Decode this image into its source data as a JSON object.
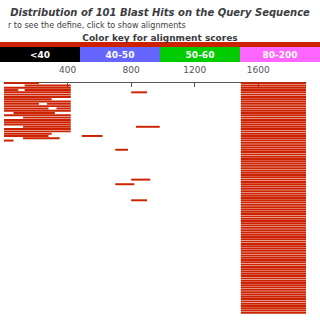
{
  "chart_data": {
    "type": "range_bar",
    "orientation": "horizontal",
    "title": "Distribution of 101 Blast Hits on the Query Sequence",
    "subtitle": "r to see the define, click to show alignments",
    "colorkey": {
      "title": "Color key for alignment scores",
      "labels": [
        "<40",
        "40-50",
        "50-60",
        "80-200"
      ],
      "colors": [
        "#000000",
        "#6666ff",
        "#00cc00",
        "#ff66ff"
      ]
    },
    "color": "#cc2200",
    "xlim": [
      0,
      1900
    ],
    "xticks": [
      400,
      800,
      1200,
      1600
    ],
    "grid": false,
    "tick_labels": "x",
    "values": [
      [
        [
          0,
          220
        ],
        [
          1490,
          1900
        ]
      ],
      [
        [
          130,
          420
        ],
        [
          1490,
          1900
        ]
      ],
      [
        [
          0,
          420
        ],
        [
          1490,
          1900
        ]
      ],
      [
        [
          0,
          90
        ],
        [
          130,
          420
        ],
        [
          1490,
          1900
        ]
      ],
      [
        [
          0,
          420
        ],
        [
          800,
          900
        ],
        [
          1490,
          1900
        ]
      ],
      [
        [
          0,
          420
        ],
        [
          1490,
          1900
        ]
      ],
      [
        [
          0,
          420
        ],
        [
          1490,
          1900
        ]
      ],
      [
        [
          0,
          300
        ],
        [
          1490,
          1900
        ]
      ],
      [
        [
          0,
          420
        ],
        [
          1490,
          1900
        ]
      ],
      [
        [
          0,
          220
        ],
        [
          270,
          420
        ],
        [
          1490,
          1900
        ]
      ],
      [
        [
          0,
          420
        ],
        [
          1490,
          1900
        ]
      ],
      [
        [
          0,
          280
        ],
        [
          330,
          420
        ],
        [
          1490,
          1900
        ]
      ],
      [
        [
          0,
          420
        ],
        [
          1490,
          1900
        ]
      ],
      [
        [
          60,
          320
        ],
        [
          1490,
          1900
        ]
      ],
      [
        [
          0,
          420
        ],
        [
          1490,
          1900
        ]
      ],
      [
        [
          120,
          420
        ],
        [
          1490,
          1900
        ]
      ],
      [
        [
          0,
          420
        ],
        [
          1490,
          1900
        ]
      ],
      [
        [
          0,
          420
        ],
        [
          1490,
          1900
        ]
      ],
      [
        [
          0,
          420
        ],
        [
          1490,
          1900
        ]
      ],
      [
        [
          120,
          420
        ],
        [
          830,
          980
        ],
        [
          1490,
          1900
        ]
      ],
      [
        [
          0,
          420
        ],
        [
          1490,
          1900
        ]
      ],
      [
        [
          0,
          420
        ],
        [
          1490,
          1900
        ]
      ],
      [
        [
          0,
          300
        ],
        [
          1490,
          1900
        ]
      ],
      [
        [
          0,
          280
        ],
        [
          490,
          620
        ],
        [
          1490,
          1900
        ]
      ],
      [
        [
          120,
          350
        ],
        [
          1490,
          1900
        ]
      ],
      [
        [
          0,
          60
        ],
        [
          1490,
          1900
        ]
      ],
      [
        [
          1490,
          1900
        ]
      ],
      [
        [
          1490,
          1900
        ]
      ],
      [
        [
          1490,
          1900
        ]
      ],
      [
        [
          700,
          780
        ],
        [
          1490,
          1900
        ]
      ],
      [
        [
          1490,
          1900
        ]
      ],
      [
        [
          1490,
          1900
        ]
      ],
      [
        [
          1490,
          1900
        ]
      ],
      [
        [
          1490,
          1900
        ]
      ],
      [
        [
          1490,
          1900
        ]
      ],
      [
        [
          1490,
          1900
        ]
      ],
      [
        [
          1490,
          1900
        ]
      ],
      [
        [
          1490,
          1900
        ]
      ],
      [
        [
          1490,
          1900
        ]
      ],
      [
        [
          1490,
          1900
        ]
      ],
      [
        [
          1490,
          1900
        ]
      ],
      [
        [
          1490,
          1900
        ]
      ],
      [
        [
          800,
          920
        ],
        [
          1490,
          1900
        ]
      ],
      [
        [
          1490,
          1900
        ]
      ],
      [
        [
          700,
          820
        ],
        [
          1490,
          1900
        ]
      ],
      [
        [
          1490,
          1900
        ]
      ],
      [
        [
          1490,
          1900
        ]
      ],
      [
        [
          1490,
          1900
        ]
      ],
      [
        [
          1490,
          1900
        ]
      ],
      [
        [
          1490,
          1900
        ]
      ],
      [
        [
          1490,
          1900
        ]
      ],
      [
        [
          800,
          900
        ],
        [
          1490,
          1900
        ]
      ],
      [
        [
          1490,
          1900
        ]
      ],
      [
        [
          1490,
          1900
        ]
      ],
      [
        [
          1490,
          1900
        ]
      ],
      [
        [
          1490,
          1900
        ]
      ],
      [
        [
          1490,
          1900
        ]
      ],
      [
        [
          1490,
          1900
        ]
      ],
      [
        [
          1490,
          1900
        ]
      ],
      [
        [
          1490,
          1900
        ]
      ],
      [
        [
          1490,
          1900
        ]
      ],
      [
        [
          1490,
          1900
        ]
      ],
      [
        [
          1490,
          1900
        ]
      ],
      [
        [
          1490,
          1900
        ]
      ],
      [
        [
          1490,
          1900
        ]
      ],
      [
        [
          1490,
          1900
        ]
      ],
      [
        [
          1490,
          1900
        ]
      ],
      [
        [
          1490,
          1900
        ]
      ],
      [
        [
          1490,
          1900
        ]
      ],
      [
        [
          1490,
          1900
        ]
      ],
      [
        [
          1490,
          1900
        ]
      ],
      [
        [
          1490,
          1900
        ]
      ],
      [
        [
          1490,
          1900
        ]
      ],
      [
        [
          1490,
          1900
        ]
      ],
      [
        [
          1490,
          1900
        ]
      ],
      [
        [
          1490,
          1900
        ]
      ],
      [
        [
          1490,
          1900
        ]
      ],
      [
        [
          1490,
          1900
        ]
      ],
      [
        [
          1490,
          1900
        ]
      ],
      [
        [
          1490,
          1900
        ]
      ],
      [
        [
          1490,
          1900
        ]
      ],
      [
        [
          1490,
          1900
        ]
      ],
      [
        [
          1490,
          1900
        ]
      ],
      [
        [
          1490,
          1900
        ]
      ],
      [
        [
          1490,
          1900
        ]
      ],
      [
        [
          1490,
          1900
        ]
      ],
      [
        [
          1490,
          1900
        ]
      ],
      [
        [
          1490,
          1900
        ]
      ],
      [
        [
          1490,
          1900
        ]
      ],
      [
        [
          1490,
          1900
        ]
      ],
      [
        [
          1490,
          1900
        ]
      ],
      [
        [
          1490,
          1900
        ]
      ],
      [
        [
          1490,
          1900
        ]
      ],
      [
        [
          1490,
          1900
        ]
      ],
      [
        [
          1490,
          1900
        ]
      ],
      [
        [
          1490,
          1900
        ]
      ],
      [
        [
          1490,
          1900
        ]
      ],
      [
        [
          1490,
          1900
        ]
      ],
      [
        [
          1490,
          1900
        ]
      ],
      [
        [
          1490,
          1900
        ]
      ],
      [
        [
          1490,
          1900
        ]
      ]
    ]
  }
}
